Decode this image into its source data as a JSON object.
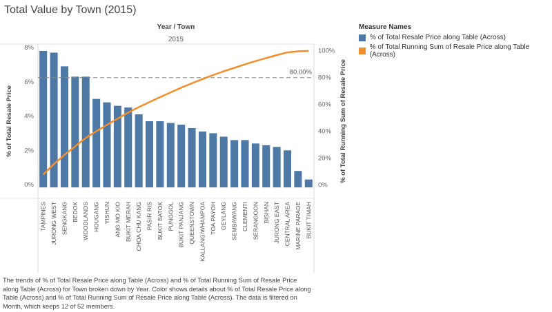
{
  "title": "Total Value by Town (2015)",
  "header": {
    "dimension": "Year / Town",
    "year": "2015"
  },
  "legend": {
    "title": "Measure Names",
    "items": [
      {
        "label": "% of Total Resale Price along Table (Across)",
        "color": "#4e79a7"
      },
      {
        "label": "% of Total Running Sum of Resale Price along Table (Across)",
        "color": "#f28e2b"
      }
    ]
  },
  "caption": "The trends of % of Total Resale Price along Table (Across) and % of Total Running Sum of Resale Price along Table (Across) for Town broken down by Year.  Color shows details about % of Total Resale Price along Table (Across) and % of Total Running Sum of Resale Price along Table (Across). The data is filtered on Month, which keeps 12 of 52 members.",
  "chart_data": {
    "type": "bar",
    "categories": [
      "TAMPINES",
      "JURONG WEST",
      "SENGKANG",
      "BEDOK",
      "WOODLANDS",
      "HOUGANG",
      "YISHUN",
      "ANG MO KIO",
      "BUKIT MERAH",
      "CHOA CHU KANG",
      "PASIR RIS",
      "BUKIT BATOK",
      "PUNGGOL",
      "BUKIT PANJANG",
      "QUEENSTOWN",
      "KALLANG/WHAMPOA",
      "TOA PAYOH",
      "GEYLANG",
      "SEMBAWANG",
      "CLEMENTI",
      "SERANGOON",
      "BISHAN",
      "JURONG EAST",
      "CENTRAL AREA",
      "MARINE PARADE",
      "BUKIT TIMAH"
    ],
    "series": [
      {
        "name": "% of Total Resale Price along Table (Across)",
        "axis": "left",
        "values": [
          7.8,
          7.7,
          6.9,
          6.3,
          6.3,
          5.0,
          4.8,
          4.6,
          4.5,
          4.1,
          3.7,
          3.7,
          3.6,
          3.5,
          3.3,
          3.1,
          3.0,
          2.8,
          2.6,
          2.6,
          2.4,
          2.3,
          2.2,
          2.0,
          0.8,
          0.3
        ]
      },
      {
        "name": "% of Total Running Sum of Resale Price along Table (Across)",
        "axis": "right",
        "values": [
          7.8,
          15.5,
          22.4,
          28.7,
          35.0,
          40.0,
          44.8,
          49.4,
          53.9,
          58.0,
          61.7,
          65.4,
          69.0,
          72.5,
          75.8,
          78.9,
          81.9,
          84.7,
          87.3,
          89.9,
          92.3,
          94.6,
          96.8,
          98.8,
          99.6,
          99.9
        ]
      }
    ],
    "ylabel_left": "% of Total Resale Price",
    "ylabel_right": "% of Total Running Sum of Resale Price",
    "ylim_left": [
      -0.8,
      8.2
    ],
    "ylim_right": [
      -10,
      105
    ],
    "yticks_left": [
      "0%",
      "2%",
      "4%",
      "6%",
      "8%"
    ],
    "yticks_right": [
      "0%",
      "20%",
      "40%",
      "60%",
      "80%",
      "100%"
    ],
    "reference_line": {
      "value": 80,
      "axis": "right",
      "label": "80.00%"
    },
    "grid": false
  }
}
